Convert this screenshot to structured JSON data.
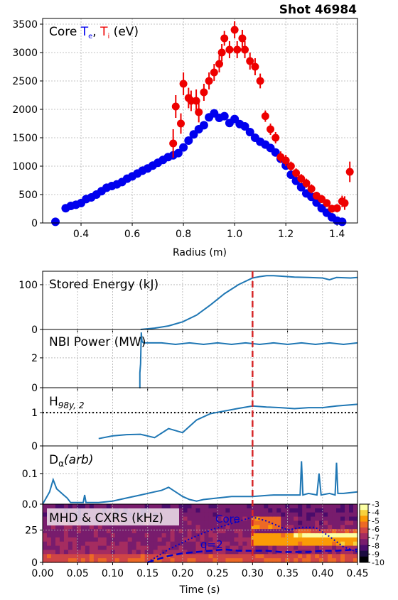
{
  "header": {
    "shot": "Shot 46984"
  },
  "colors": {
    "te": "#0000ee",
    "ti": "#ee0000",
    "trace": "#1f77b4",
    "marker": "#d62728"
  },
  "chart_data": [
    {
      "type": "scatter",
      "panel": "profiles",
      "title_prefix": "Core ",
      "te_label": "T",
      "te_sub": "e",
      "ti_label": "T",
      "ti_sub": "i",
      "units": " (eV)",
      "xlabel": "Radius (m)",
      "xlim": [
        0.25,
        1.48
      ],
      "ylim": [
        0,
        3600
      ],
      "xticks": [
        0.4,
        0.6,
        0.8,
        1.0,
        1.2,
        1.4
      ],
      "xticklabels": [
        "0.4",
        "0.6",
        "0.8",
        "1.0",
        "1.2",
        "1.4"
      ],
      "yticks": [
        0,
        500,
        1000,
        1500,
        2000,
        2500,
        3000,
        3500
      ],
      "yticklabels": [
        "0",
        "500",
        "1000",
        "1500",
        "2000",
        "2500",
        "3000",
        "3500"
      ],
      "grid": true,
      "series": [
        {
          "name": "Te",
          "color": "#0000ee",
          "x": [
            0.3,
            0.34,
            0.36,
            0.38,
            0.4,
            0.42,
            0.44,
            0.46,
            0.48,
            0.5,
            0.52,
            0.54,
            0.56,
            0.58,
            0.6,
            0.62,
            0.64,
            0.66,
            0.68,
            0.7,
            0.72,
            0.74,
            0.76,
            0.78,
            0.8,
            0.82,
            0.84,
            0.86,
            0.88,
            0.9,
            0.92,
            0.94,
            0.96,
            0.98,
            1.0,
            1.02,
            1.04,
            1.06,
            1.08,
            1.1,
            1.12,
            1.14,
            1.16,
            1.18,
            1.2,
            1.22,
            1.24,
            1.26,
            1.28,
            1.3,
            1.32,
            1.34,
            1.36,
            1.38,
            1.4,
            1.42
          ],
          "y": [
            20,
            260,
            300,
            320,
            350,
            420,
            450,
            500,
            560,
            620,
            650,
            680,
            720,
            780,
            820,
            870,
            920,
            960,
            1010,
            1060,
            1110,
            1160,
            1190,
            1230,
            1330,
            1450,
            1560,
            1650,
            1720,
            1860,
            1930,
            1850,
            1880,
            1760,
            1830,
            1740,
            1700,
            1600,
            1500,
            1430,
            1380,
            1320,
            1240,
            1130,
            1010,
            850,
            740,
            630,
            520,
            460,
            360,
            260,
            180,
            100,
            40,
            20
          ]
        },
        {
          "name": "Ti",
          "color": "#ee0000",
          "x": [
            0.76,
            0.77,
            0.79,
            0.8,
            0.82,
            0.83,
            0.85,
            0.86,
            0.88,
            0.9,
            0.92,
            0.94,
            0.95,
            0.96,
            0.98,
            1.0,
            1.01,
            1.03,
            1.04,
            1.06,
            1.08,
            1.1,
            1.12,
            1.14,
            1.16,
            1.18,
            1.2,
            1.22,
            1.24,
            1.26,
            1.28,
            1.3,
            1.32,
            1.34,
            1.36,
            1.38,
            1.4,
            1.42,
            1.43,
            1.45
          ],
          "y": [
            1400,
            2050,
            1750,
            2450,
            2200,
            2150,
            2150,
            1950,
            2300,
            2500,
            2650,
            2800,
            3000,
            3250,
            3050,
            3400,
            3050,
            3250,
            3050,
            2850,
            2750,
            2500,
            1880,
            1650,
            1500,
            1160,
            1100,
            1000,
            880,
            780,
            700,
            600,
            480,
            420,
            350,
            250,
            260,
            380,
            350,
            900
          ],
          "err": [
            250,
            200,
            180,
            200,
            180,
            180,
            200,
            180,
            150,
            150,
            150,
            150,
            150,
            130,
            150,
            150,
            150,
            150,
            150,
            150,
            150,
            130,
            100,
            100,
            100,
            100,
            100,
            80,
            80,
            80,
            80,
            80,
            70,
            70,
            70,
            70,
            70,
            100,
            120,
            180
          ]
        }
      ]
    },
    {
      "type": "line",
      "panel": "stored-energy",
      "title": "Stored Energy (kJ)",
      "xlim": [
        0.0,
        0.45
      ],
      "ylim": [
        0,
        130
      ],
      "yticks": [
        0,
        100
      ],
      "yticklabels": [
        "0",
        "100"
      ],
      "x": [
        0.14,
        0.16,
        0.18,
        0.2,
        0.22,
        0.24,
        0.26,
        0.28,
        0.3,
        0.31,
        0.32,
        0.33,
        0.34,
        0.36,
        0.38,
        0.4,
        0.41,
        0.42,
        0.44,
        0.45
      ],
      "y": [
        0,
        3,
        8,
        17,
        32,
        55,
        80,
        100,
        115,
        118,
        120,
        120,
        119,
        117,
        116,
        115,
        111,
        116,
        115,
        116
      ]
    },
    {
      "type": "line",
      "panel": "nbi-power",
      "title": "NBI Power (MW)",
      "xlim": [
        0.0,
        0.45
      ],
      "ylim": [
        0,
        3.9
      ],
      "yticks": [
        0,
        2
      ],
      "yticklabels": [
        "0",
        "2"
      ],
      "x": [
        0.138,
        0.139,
        0.139,
        0.14,
        0.141,
        0.142,
        0.144,
        0.15,
        0.17,
        0.19,
        0.21,
        0.23,
        0.25,
        0.27,
        0.29,
        0.31,
        0.33,
        0.35,
        0.37,
        0.39,
        0.41,
        0.43,
        0.45
      ],
      "y": [
        0,
        0,
        1.0,
        1.6,
        3.7,
        3.1,
        3.0,
        3.0,
        3.0,
        2.9,
        3.0,
        2.9,
        3.0,
        2.9,
        3.0,
        2.9,
        3.0,
        2.9,
        3.0,
        2.9,
        3.0,
        2.9,
        3.0
      ]
    },
    {
      "type": "line",
      "panel": "h98",
      "title_main": "H",
      "title_sub": "98y, 2",
      "xlim": [
        0.0,
        0.45
      ],
      "ylim": [
        0,
        1.75
      ],
      "yticks": [
        0,
        1
      ],
      "yticklabels": [
        "0",
        "1"
      ],
      "reference_line": 1.0,
      "x": [
        0.08,
        0.1,
        0.12,
        0.14,
        0.16,
        0.18,
        0.2,
        0.22,
        0.24,
        0.26,
        0.28,
        0.3,
        0.32,
        0.34,
        0.36,
        0.38,
        0.4,
        0.42,
        0.45
      ],
      "y": [
        0.22,
        0.3,
        0.34,
        0.35,
        0.25,
        0.52,
        0.4,
        0.78,
        0.97,
        1.05,
        1.13,
        1.2,
        1.17,
        1.15,
        1.12,
        1.15,
        1.15,
        1.2,
        1.25
      ]
    },
    {
      "type": "line",
      "panel": "d-alpha",
      "title_main": "D",
      "title_sub": "α",
      "title_rest": "(arb)",
      "xlim": [
        0.0,
        0.45
      ],
      "ylim": [
        0,
        0.19
      ],
      "yticks": [
        0.0,
        0.1
      ],
      "yticklabels": [
        "0.0",
        "0.1"
      ],
      "x": [
        0.0,
        0.01,
        0.015,
        0.02,
        0.025,
        0.03,
        0.035,
        0.04,
        0.05,
        0.058,
        0.06,
        0.062,
        0.08,
        0.1,
        0.12,
        0.14,
        0.16,
        0.17,
        0.18,
        0.19,
        0.2,
        0.21,
        0.22,
        0.23,
        0.25,
        0.27,
        0.3,
        0.33,
        0.36,
        0.368,
        0.37,
        0.372,
        0.38,
        0.392,
        0.395,
        0.398,
        0.41,
        0.418,
        0.42,
        0.422,
        0.43,
        0.45
      ],
      "y": [
        0.0,
        0.04,
        0.08,
        0.05,
        0.04,
        0.03,
        0.02,
        0.005,
        0.005,
        0.005,
        0.03,
        0.005,
        0.005,
        0.01,
        0.02,
        0.03,
        0.04,
        0.045,
        0.055,
        0.04,
        0.025,
        0.015,
        0.01,
        0.015,
        0.02,
        0.025,
        0.025,
        0.03,
        0.03,
        0.03,
        0.14,
        0.03,
        0.035,
        0.03,
        0.1,
        0.03,
        0.035,
        0.03,
        0.135,
        0.035,
        0.035,
        0.04
      ]
    },
    {
      "type": "heatmap",
      "panel": "mhd-cxrs",
      "title": "MHD & CXRS (kHz)",
      "xlim": [
        0.0,
        0.45
      ],
      "ylim": [
        0,
        45
      ],
      "yticks": [
        0,
        25
      ],
      "yticklabels": [
        "0",
        "25"
      ],
      "xticks": [
        0.0,
        0.05,
        0.1,
        0.15,
        0.2,
        0.25,
        0.3,
        0.35,
        0.4,
        0.45
      ],
      "xticklabels": [
        "0.00",
        "0.05",
        "0.10",
        "0.15",
        "0.20",
        "0.25",
        "0.30",
        "0.35",
        "0.40",
        "0.45"
      ],
      "xlabel": "Time (s)",
      "colorbar": {
        "min": -10,
        "max": -3,
        "ticks": [
          "-3",
          "-4",
          "-5",
          "-6",
          "-7",
          "-8",
          "-9",
          "-10"
        ]
      },
      "core_label": "Core",
      "q2_label": "q=2",
      "core_x": [
        0.15,
        0.18,
        0.21,
        0.24,
        0.27,
        0.3,
        0.32,
        0.35,
        0.37,
        0.39,
        0.41,
        0.43,
        0.45
      ],
      "core_y": [
        0,
        10,
        18,
        25,
        30,
        35,
        32,
        25,
        27,
        27,
        20,
        12,
        8
      ],
      "q2_x": [
        0.15,
        0.18,
        0.2,
        0.22,
        0.24,
        0.26,
        0.28,
        0.3,
        0.32,
        0.34,
        0.36,
        0.38,
        0.4,
        0.42,
        0.45
      ],
      "q2_y": [
        0,
        5,
        7,
        8,
        9,
        10,
        9,
        9,
        9,
        8,
        8,
        8,
        9,
        9,
        10
      ]
    }
  ],
  "marker_time": 0.3
}
